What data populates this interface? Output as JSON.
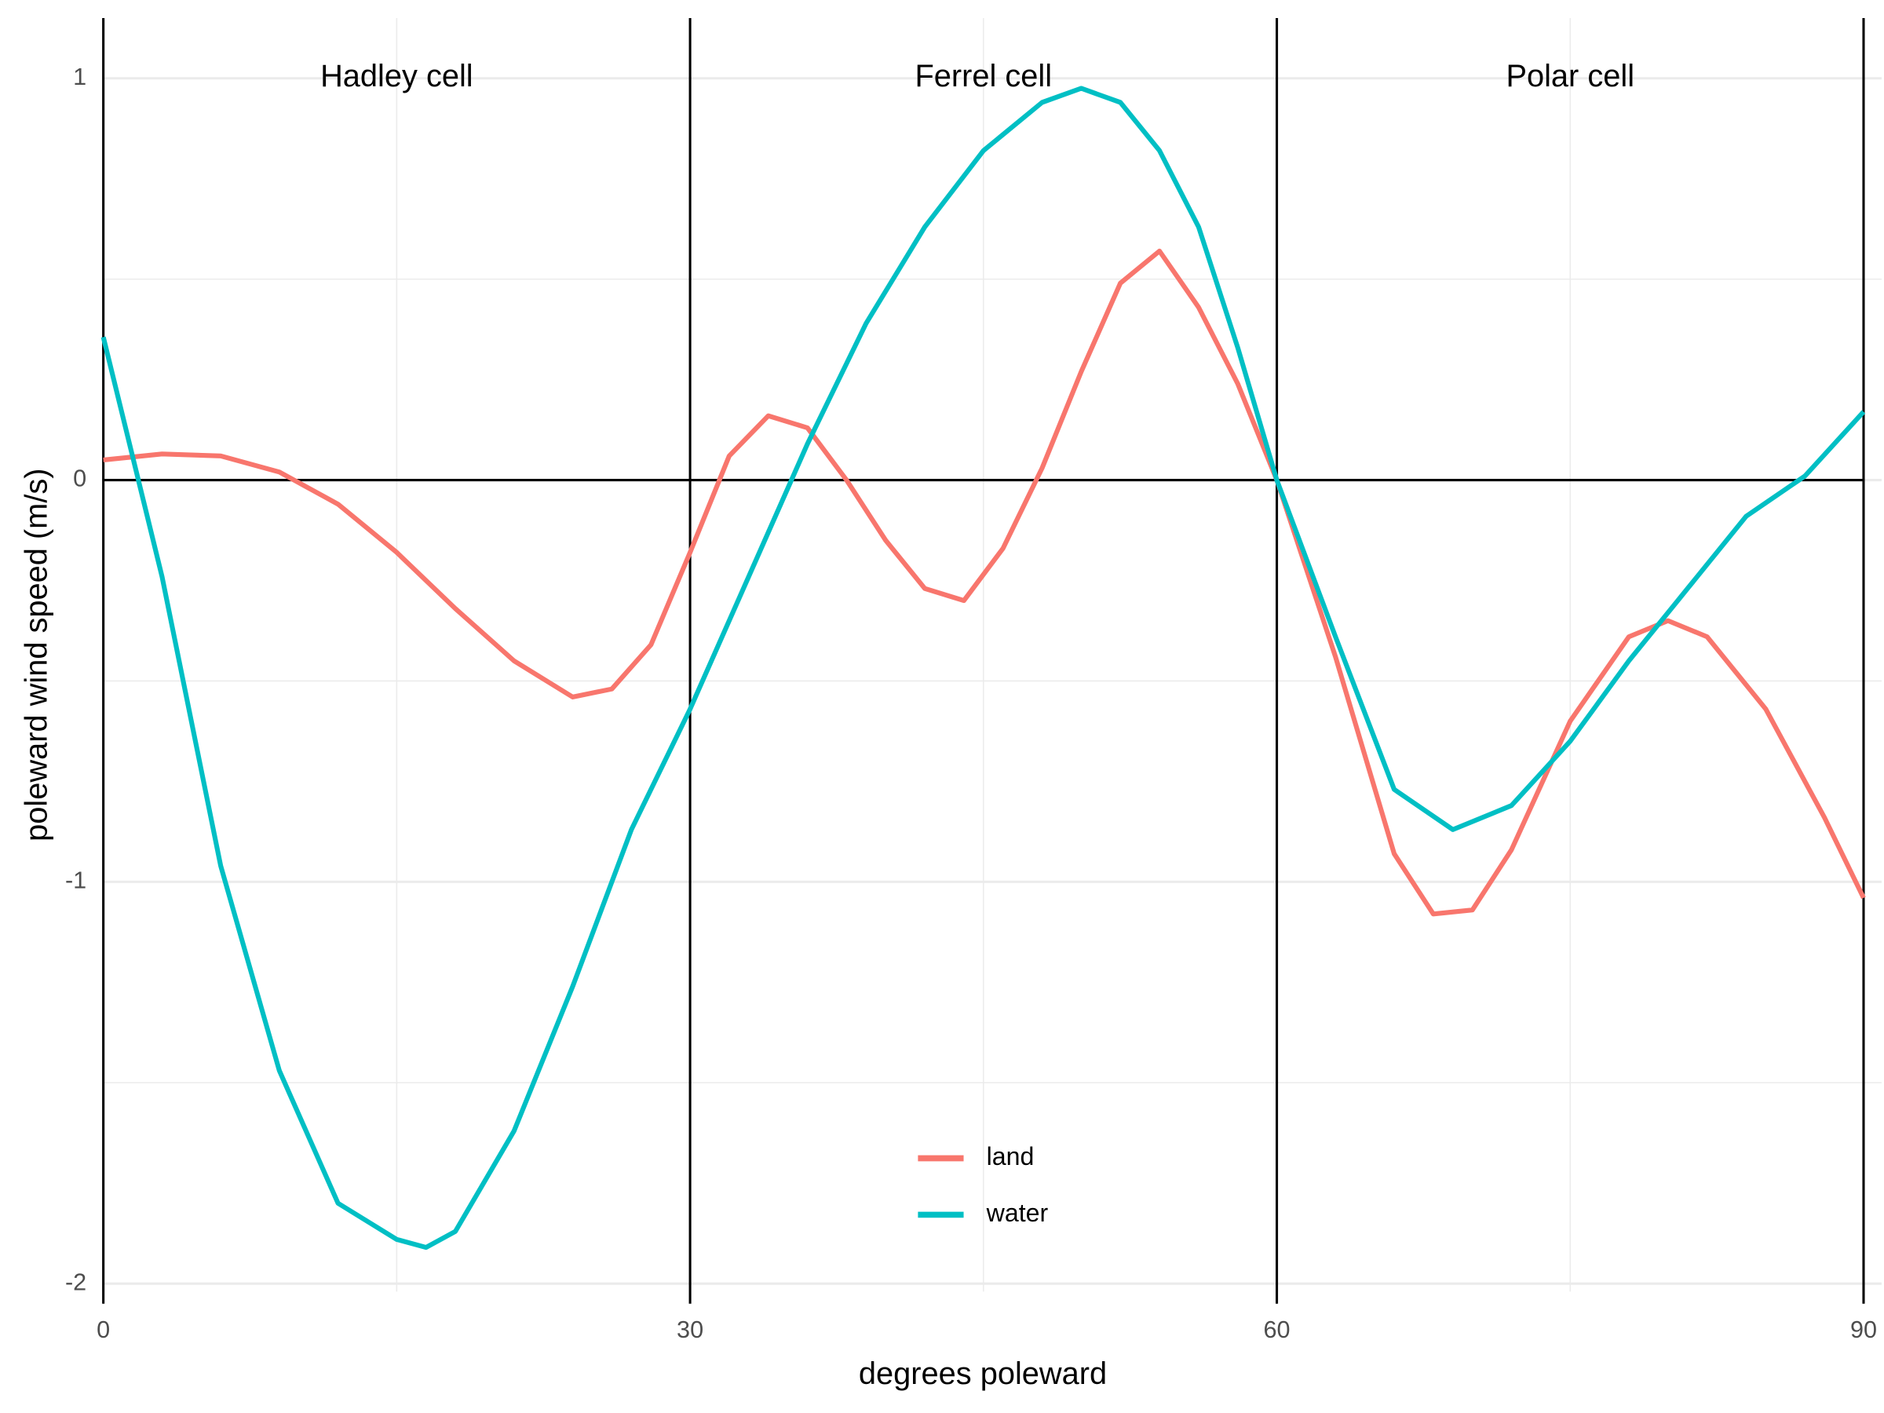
{
  "chart_data": {
    "type": "line",
    "xlabel": "degrees poleward",
    "ylabel": "poleward wind speed (m/s)",
    "xlim": [
      0,
      90
    ],
    "ylim": [
      -2.02,
      1.15
    ],
    "xticks": [
      0,
      30,
      60,
      90
    ],
    "yticks": [
      -2,
      -1,
      0,
      1
    ],
    "x_minor_grid": [
      15,
      45,
      75
    ],
    "y_minor_grid": [
      -1.5,
      -0.5,
      0.5
    ],
    "grid": true,
    "vlines": [
      0,
      30,
      60,
      90
    ],
    "hlines": [
      0
    ],
    "legend": "bottom",
    "annotations": [
      {
        "text": "Hadley cell",
        "x": 15,
        "y": 1
      },
      {
        "text": "Ferrel cell",
        "x": 45,
        "y": 1
      },
      {
        "text": "Polar cell",
        "x": 75,
        "y": 1
      }
    ],
    "series": [
      {
        "name": "land",
        "color": "#F8766D",
        "x": [
          0,
          3,
          6,
          9,
          12,
          15,
          18,
          21,
          24,
          26,
          28,
          30,
          32,
          34,
          36,
          38,
          40,
          42,
          44,
          46,
          48,
          50,
          52,
          54,
          56,
          58,
          60,
          63,
          66,
          68,
          70,
          72,
          75,
          78,
          80,
          82,
          85,
          88,
          90
        ],
        "values": [
          0.05,
          0.065,
          0.06,
          0.02,
          -0.06,
          -0.18,
          -0.32,
          -0.45,
          -0.54,
          -0.52,
          -0.41,
          -0.18,
          0.06,
          0.16,
          0.13,
          0,
          -0.15,
          -0.27,
          -0.3,
          -0.17,
          0.03,
          0.27,
          0.49,
          0.57,
          0.43,
          0.24,
          0,
          -0.44,
          -0.93,
          -1.08,
          -1.07,
          -0.92,
          -0.6,
          -0.39,
          -0.35,
          -0.39,
          -0.57,
          -0.84,
          -1.04
        ]
      },
      {
        "name": "water",
        "color": "#00BFC4",
        "x": [
          0,
          3,
          6,
          9,
          12,
          15,
          16.5,
          18,
          21,
          24,
          27,
          30,
          33,
          36,
          39,
          42,
          45,
          48,
          50,
          52,
          54,
          56,
          58,
          60,
          63,
          66,
          69,
          72,
          75,
          78,
          81,
          84,
          87,
          90
        ],
        "values": [
          0.356,
          -0.24,
          -0.96,
          -1.47,
          -1.8,
          -1.89,
          -1.91,
          -1.87,
          -1.62,
          -1.26,
          -0.87,
          -0.57,
          -0.24,
          0.09,
          0.39,
          0.63,
          0.82,
          0.94,
          0.975,
          0.94,
          0.82,
          0.63,
          0.33,
          0,
          -0.39,
          -0.77,
          -0.87,
          -0.81,
          -0.65,
          -0.45,
          -0.27,
          -0.09,
          0.01,
          0.17
        ]
      }
    ]
  }
}
